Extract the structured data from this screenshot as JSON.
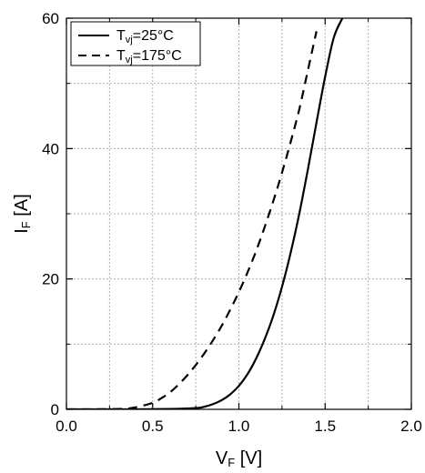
{
  "chart_data": {
    "type": "line",
    "xlabel": "VF [V]",
    "ylabel": "IF [A]",
    "xlabel_parts": {
      "main": "V",
      "sub": "F",
      "unit": " [V]"
    },
    "ylabel_parts": {
      "main": "I",
      "sub": "F",
      "unit": " [A]"
    },
    "xlim": [
      0.0,
      2.0
    ],
    "ylim": [
      0,
      60
    ],
    "xticks": [
      0.0,
      0.5,
      1.0,
      1.5,
      2.0
    ],
    "xtick_labels": [
      "0.0",
      "0.5",
      "1.0",
      "1.5",
      "2.0"
    ],
    "yticks": [
      0,
      20,
      40,
      60
    ],
    "ytick_labels": [
      "0",
      "20",
      "40",
      "60"
    ],
    "grid": true,
    "legend_position": "top-left",
    "series": [
      {
        "name": "Tvj=25°C",
        "legend_parts": {
          "main": "T",
          "sub": "vj",
          "rest": "=25°C"
        },
        "style": "solid",
        "color": "#000000",
        "x": [
          0.0,
          0.3,
          0.6,
          0.75,
          0.8,
          0.85,
          0.9,
          0.95,
          1.0,
          1.05,
          1.1,
          1.15,
          1.2,
          1.25,
          1.3,
          1.35,
          1.4,
          1.45,
          1.5,
          1.55,
          1.6
        ],
        "y": [
          0.0,
          0.0,
          0.05,
          0.2,
          0.4,
          0.8,
          1.4,
          2.3,
          3.6,
          5.4,
          7.8,
          10.8,
          14.4,
          18.8,
          24.0,
          30.0,
          36.8,
          44.0,
          51.0,
          57.0,
          60.0
        ]
      },
      {
        "name": "Tvj=175°C",
        "legend_parts": {
          "main": "T",
          "sub": "vj",
          "rest": "=175°C"
        },
        "style": "dashed",
        "color": "#000000",
        "x": [
          0.0,
          0.3,
          0.4,
          0.5,
          0.55,
          0.6,
          0.65,
          0.7,
          0.75,
          0.8,
          0.85,
          0.9,
          0.95,
          1.0,
          1.05,
          1.1,
          1.15,
          1.2,
          1.25,
          1.3,
          1.35,
          1.4,
          1.45
        ],
        "y": [
          0.0,
          0.05,
          0.3,
          1.0,
          1.7,
          2.6,
          3.8,
          5.2,
          6.8,
          8.6,
          10.6,
          12.8,
          15.3,
          18.0,
          21.0,
          24.3,
          28.0,
          32.0,
          36.3,
          41.0,
          46.0,
          52.0,
          58.0
        ]
      }
    ]
  }
}
